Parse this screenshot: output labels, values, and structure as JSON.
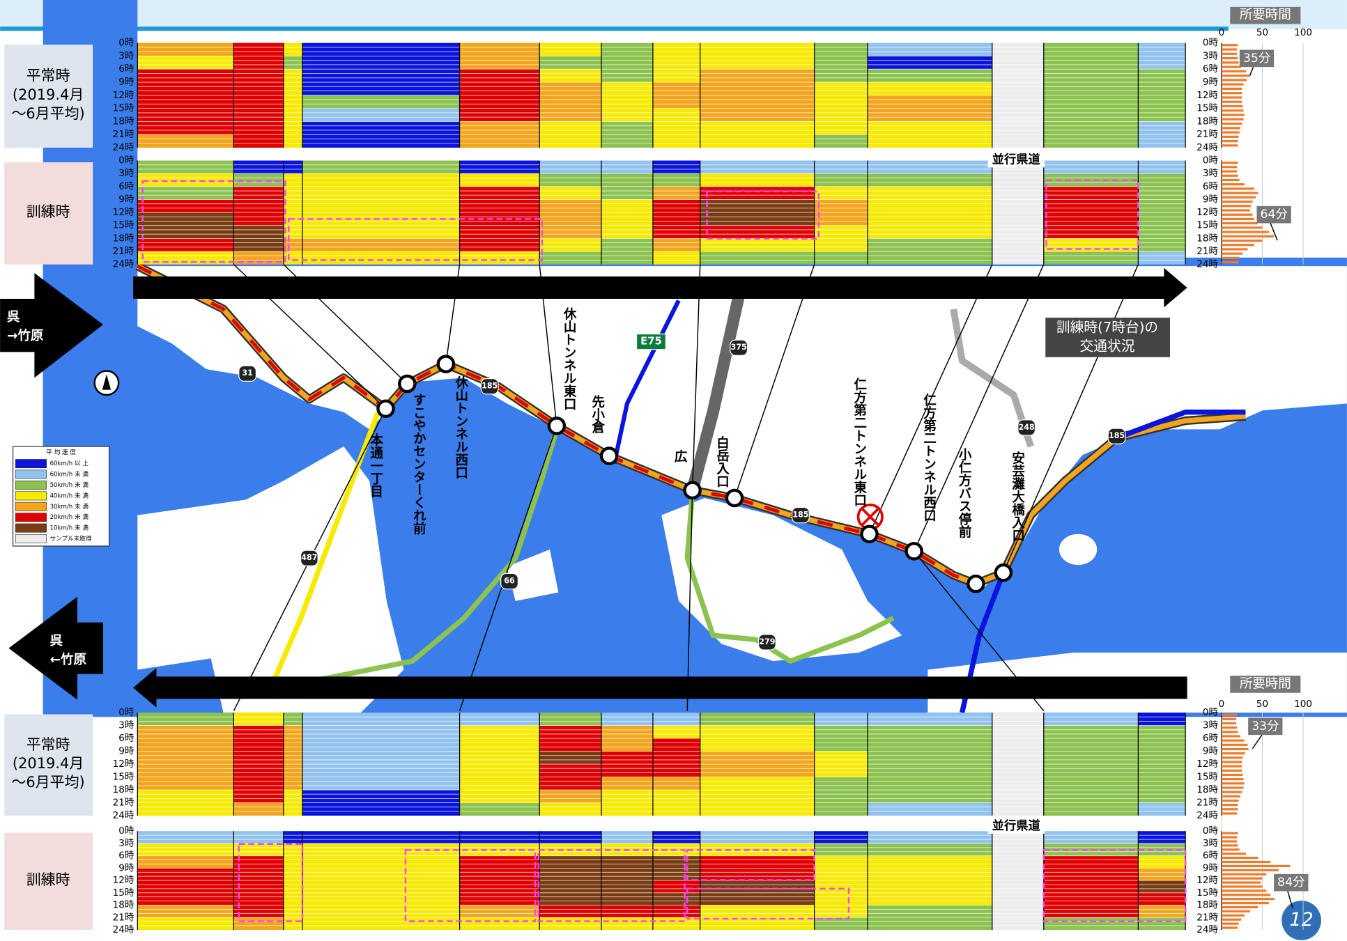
{
  "legend": {
    "title": "平 均 速 度",
    "items": [
      {
        "label": "60km/h 以 上",
        "color": "#0a14dc"
      },
      {
        "label": "60km/h 未 満",
        "color": "#92c3ee"
      },
      {
        "label": "50km/h 未 満",
        "color": "#8cc24f"
      },
      {
        "label": "40km/h 未 満",
        "color": "#f7ea00"
      },
      {
        "label": "30km/h 未 満",
        "color": "#f2a51d"
      },
      {
        "label": "20km/h 未 満",
        "color": "#e00000"
      },
      {
        "label": "10km/h 未 満",
        "color": "#7a3c12"
      },
      {
        "label": "サンプル未取得",
        "color": "#ececec"
      }
    ]
  },
  "hour_labels": [
    "0時",
    "3時",
    "6時",
    "9時",
    "12時",
    "15時",
    "18時",
    "21時",
    "24時"
  ],
  "side_road_label": "並行県道",
  "travel": {
    "title": "所要時間",
    "xlim": [
      0,
      100
    ],
    "xticks": [
      0,
      50,
      100
    ],
    "color": "#f07a2a"
  },
  "sections": [
    {
      "direction_lines": [
        "呉",
        "→竹原"
      ],
      "panels": [
        {
          "label_lines": [
            "平常時",
            "(2019.4月",
            "〜6月平均)"
          ],
          "callout": "35分",
          "speed_classes": [
            [
              4,
              5,
              3,
              0,
              4,
              3,
              2,
              3,
              3,
              2,
              1,
              7,
              2,
              1
            ],
            [
              3,
              5,
              2,
              0,
              4,
              2,
              2,
              3,
              3,
              2,
              0,
              7,
              2,
              1
            ],
            [
              5,
              5,
              3,
              0,
              5,
              3,
              2,
              3,
              4,
              2,
              2,
              7,
              2,
              2
            ],
            [
              5,
              5,
              3,
              0,
              5,
              4,
              3,
              4,
              4,
              3,
              3,
              7,
              2,
              2
            ],
            [
              5,
              5,
              3,
              2,
              5,
              4,
              3,
              4,
              4,
              3,
              4,
              7,
              2,
              2
            ],
            [
              5,
              5,
              3,
              1,
              5,
              4,
              3,
              3,
              4,
              3,
              4,
              7,
              2,
              2
            ],
            [
              5,
              5,
              3,
              0,
              4,
              3,
              2,
              3,
              3,
              3,
              3,
              7,
              2,
              1
            ],
            [
              4,
              5,
              3,
              0,
              4,
              3,
              2,
              3,
              3,
              2,
              3,
              7,
              2,
              1
            ]
          ],
          "travel_time": [
            20,
            19,
            19,
            20,
            21,
            24,
            30,
            35,
            31,
            27,
            25,
            25,
            25,
            25,
            26,
            27,
            28,
            27,
            25,
            23,
            22,
            21,
            20,
            20
          ]
        },
        {
          "label_lines": [
            "訓練時"
          ],
          "callout": "64分",
          "speed_classes": [
            [
              2,
              0,
              0,
              2,
              0,
              1,
              1,
              0,
              1,
              1,
              1,
              7,
              1,
              1
            ],
            [
              3,
              2,
              3,
              3,
              3,
              2,
              2,
              2,
              3,
              2,
              2,
              7,
              2,
              2
            ],
            [
              2,
              5,
              3,
              3,
              5,
              3,
              2,
              4,
              5,
              3,
              3,
              7,
              5,
              2
            ],
            [
              5,
              5,
              3,
              3,
              5,
              4,
              3,
              5,
              6,
              4,
              3,
              7,
              5,
              2
            ],
            [
              6,
              5,
              3,
              3,
              5,
              4,
              3,
              5,
              6,
              4,
              3,
              7,
              5,
              2
            ],
            [
              6,
              6,
              3,
              3,
              5,
              4,
              3,
              5,
              5,
              3,
              3,
              7,
              5,
              2
            ],
            [
              5,
              6,
              4,
              4,
              5,
              3,
              2,
              4,
              3,
              3,
              2,
              7,
              3,
              2
            ],
            [
              3,
              4,
              3,
              3,
              3,
              2,
              2,
              3,
              2,
              2,
              2,
              7,
              2,
              1
            ]
          ],
          "travel_time": [
            20,
            19,
            19,
            20,
            22,
            28,
            40,
            45,
            42,
            38,
            36,
            35,
            38,
            40,
            44,
            50,
            58,
            64,
            50,
            40,
            32,
            26,
            22,
            21
          ]
        }
      ]
    },
    {
      "direction_lines": [
        "呉",
        "←竹原"
      ],
      "panels": [
        {
          "label_lines": [
            "平常時",
            "(2019.4月",
            "〜6月平均)"
          ],
          "callout": "33分",
          "speed_classes": [
            [
              2,
              3,
              2,
              1,
              1,
              2,
              1,
              1,
              2,
              1,
              1,
              7,
              1,
              0
            ],
            [
              4,
              5,
              4,
              1,
              3,
              5,
              4,
              3,
              3,
              2,
              2,
              7,
              2,
              2
            ],
            [
              4,
              5,
              4,
              1,
              3,
              5,
              4,
              5,
              3,
              2,
              2,
              7,
              2,
              2
            ],
            [
              4,
              5,
              4,
              1,
              3,
              6,
              5,
              5,
              4,
              3,
              2,
              7,
              2,
              2
            ],
            [
              4,
              5,
              4,
              1,
              3,
              5,
              5,
              5,
              4,
              3,
              2,
              7,
              2,
              2
            ],
            [
              4,
              5,
              4,
              1,
              3,
              5,
              4,
              4,
              3,
              2,
              2,
              7,
              2,
              2
            ],
            [
              3,
              5,
              3,
              0,
              3,
              4,
              3,
              3,
              3,
              2,
              2,
              7,
              2,
              2
            ],
            [
              3,
              4,
              3,
              0,
              2,
              3,
              3,
              3,
              3,
              2,
              1,
              7,
              2,
              1
            ]
          ],
          "travel_time": [
            19,
            18,
            18,
            19,
            20,
            23,
            28,
            32,
            33,
            29,
            26,
            25,
            25,
            25,
            26,
            27,
            28,
            27,
            25,
            23,
            21,
            20,
            20,
            19
          ]
        },
        {
          "label_lines": [
            "訓練時"
          ],
          "callout": "84分",
          "speed_classes": [
            [
              1,
              1,
              0,
              0,
              0,
              0,
              1,
              0,
              1,
              0,
              1,
              7,
              1,
              0
            ],
            [
              3,
              3,
              3,
              3,
              3,
              3,
              3,
              3,
              3,
              2,
              2,
              7,
              2,
              2
            ],
            [
              4,
              5,
              3,
              3,
              5,
              6,
              6,
              6,
              5,
              3,
              3,
              7,
              5,
              3
            ],
            [
              5,
              5,
              3,
              3,
              5,
              6,
              6,
              6,
              5,
              3,
              3,
              7,
              5,
              4
            ],
            [
              5,
              5,
              3,
              3,
              5,
              6,
              6,
              5,
              6,
              3,
              3,
              7,
              5,
              6
            ],
            [
              5,
              5,
              3,
              3,
              5,
              6,
              6,
              6,
              6,
              3,
              3,
              7,
              5,
              5
            ],
            [
              4,
              5,
              3,
              3,
              4,
              5,
              5,
              5,
              3,
              3,
              2,
              7,
              5,
              4
            ],
            [
              3,
              4,
              3,
              3,
              3,
              3,
              3,
              3,
              3,
              2,
              2,
              7,
              2,
              2
            ]
          ],
          "travel_time": [
            20,
            19,
            19,
            20,
            22,
            30,
            45,
            60,
            84,
            70,
            55,
            50,
            48,
            50,
            55,
            60,
            65,
            58,
            45,
            35,
            28,
            24,
            21,
            20
          ]
        }
      ]
    }
  ],
  "map": {
    "stations": [
      "本通一丁目",
      "すこやかセンターくれ前",
      "休山トンネル西口",
      "休山トンネル東口",
      "先小倉",
      "広",
      "白岳入口",
      "仁方第二トンネル東口",
      "仁方第二トンネル西口",
      "小仁方バス停前",
      "安芸灘大橋入口"
    ],
    "shields": [
      "31",
      "185",
      "487",
      "66",
      "E75",
      "375",
      "279",
      "248",
      "185",
      "185"
    ],
    "note_lines": [
      "訓練時(7時台)の",
      "交通状況"
    ]
  },
  "page_number": "12"
}
